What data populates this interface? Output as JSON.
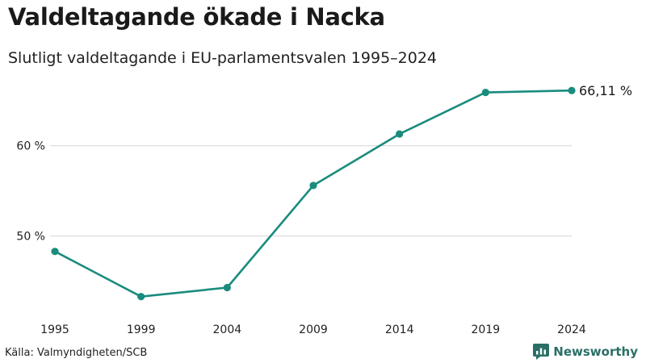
{
  "header": {
    "title": "Valdeltagande ökade i Nacka",
    "subtitle": "Slutligt valdeltagande i EU-parlamentsvalen 1995–2024"
  },
  "footer": {
    "source": "Källa: Valmyndigheten/SCB",
    "brand": "Newsworthy",
    "brand_icon": "newsworthy-logo-icon"
  },
  "colors": {
    "line": "#1a8c7d",
    "grid": "#dddddd",
    "brand": "#2a6f66"
  },
  "chart_data": {
    "type": "line",
    "title": "Valdeltagande ökade i Nacka",
    "subtitle": "Slutligt valdeltagande i EU-parlamentsvalen 1995–2024",
    "x": [
      "1995",
      "1999",
      "2004",
      "2009",
      "2014",
      "2019",
      "2024"
    ],
    "series": [
      {
        "values": [
          48.3,
          43.3,
          44.3,
          55.6,
          61.3,
          65.9,
          66.11
        ]
      }
    ],
    "yticks": [
      50,
      60
    ],
    "ytick_labels": [
      "50 %",
      "60 %"
    ],
    "ylim": [
      42.2,
      67.2
    ],
    "grid": true,
    "end_label": "66,11 %",
    "source": "Källa: Valmyndigheten/SCB"
  }
}
